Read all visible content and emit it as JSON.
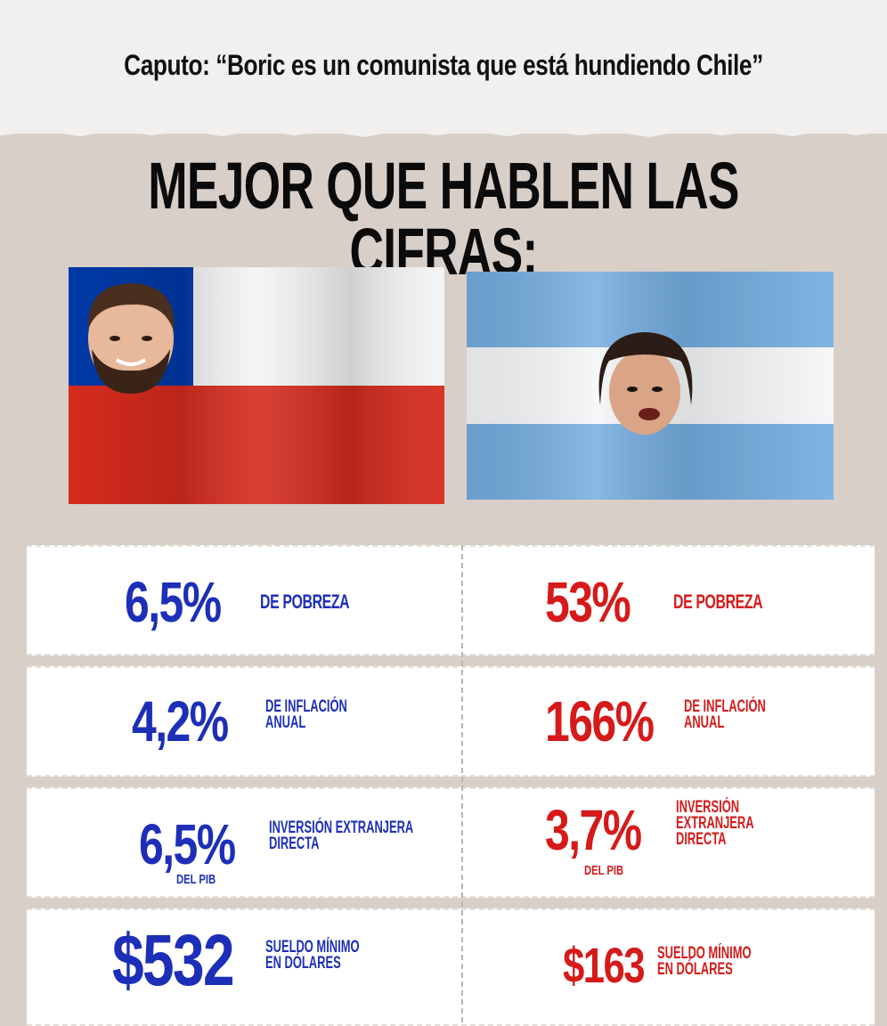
{
  "header": {
    "subtitle": "Caputo: “Boric es un comunista que está hundiendo Chile”",
    "headline": "MEJOR QUE HABLEN LAS CIFRAS:"
  },
  "colors": {
    "blue_text": "#1d2fb8",
    "red_text": "#d61a1a",
    "background": "#d8cfc8",
    "chile_red": "#d52b1e",
    "chile_blue": "#0039a6",
    "argentina_blue": "#74acdf"
  },
  "flags": {
    "chile": {
      "icon": "chile-flag-with-boric-face"
    },
    "argentina": {
      "icon": "argentina-flag-with-milei-face"
    }
  },
  "chile": {
    "poverty": {
      "value": "6,5%",
      "label": "DE POBREZA"
    },
    "inflation": {
      "value": "4,2%",
      "label": "DE INFLACIÓN\nANUAL"
    },
    "investment": {
      "value": "6,5%",
      "label": "INVERSIÓN EXTRANJERA\nDIRECTA",
      "sub": "DEL PIB"
    },
    "wage": {
      "value": "$532",
      "label": "SUELDO MÍNIMO\nEN DÓLARES"
    }
  },
  "argentina": {
    "poverty": {
      "value": "53%",
      "label": "DE POBREZA"
    },
    "inflation": {
      "value": "166%",
      "label": "DE INFLACIÓN\nANUAL"
    },
    "investment": {
      "value": "3,7%",
      "label": "INVERSIÓN EXTRANJERA\nDIRECTA",
      "sub": "DEL PIB"
    },
    "wage": {
      "value": "$163",
      "label": "SUELDO MÍNIMO\nEN DÓLARES"
    }
  }
}
